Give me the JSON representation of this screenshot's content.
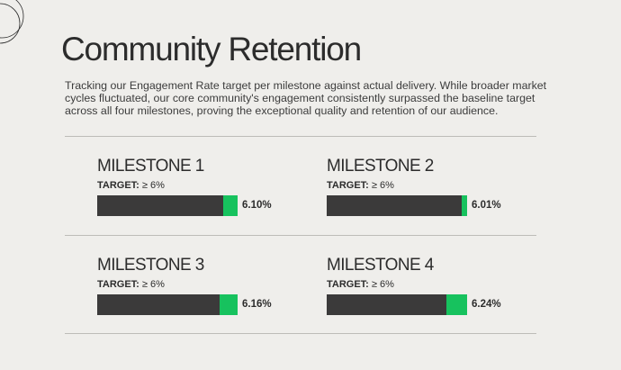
{
  "page": {
    "title": "Community Retention",
    "description": "Tracking our Engagement Rate target per milestone against actual delivery. While broader market cycles fluctuated, our core community's engagement consistently surpassed the baseline target across all four milestones, proving the exceptional quality and retention of our audience."
  },
  "colors": {
    "background": "#efeeeb",
    "bar_dark": "#3b3a3a",
    "bar_accent": "#17c25e",
    "text": "#2c2c2c"
  },
  "milestones": [
    {
      "title": "MILESTONE 1",
      "target_label": "TARGET:",
      "target_value": "≥ 6%",
      "value_label": "6.10%",
      "excess_fraction": 0.1
    },
    {
      "title": "MILESTONE 2",
      "target_label": "TARGET:",
      "target_value": "≥ 6%",
      "value_label": "6.01%",
      "excess_fraction": 0.04
    },
    {
      "title": "MILESTONE 3",
      "target_label": "TARGET:",
      "target_value": "≥ 6%",
      "value_label": "6.16%",
      "excess_fraction": 0.13
    },
    {
      "title": "MILESTONE 4",
      "target_label": "TARGET:",
      "target_value": "≥ 6%",
      "value_label": "6.24%",
      "excess_fraction": 0.15
    }
  ]
}
